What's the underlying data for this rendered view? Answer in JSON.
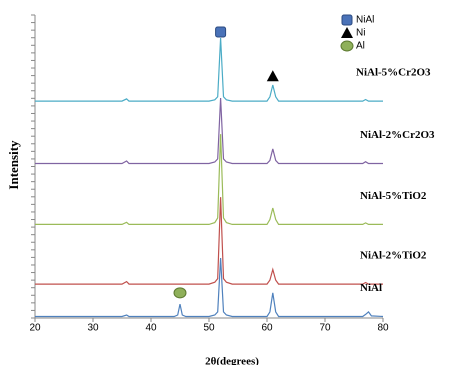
{
  "chart_data": {
    "type": "line",
    "x_label": "2θ(degrees)",
    "y_label": "Intensity",
    "xlim": [
      20,
      80
    ],
    "xticks": [
      20,
      30,
      40,
      50,
      60,
      70,
      80
    ],
    "ylim": [
      0,
      100
    ],
    "x": [
      20,
      35,
      35.8,
      36.2,
      37,
      44,
      44.6,
      45,
      45.4,
      46,
      50,
      51,
      51.5,
      52,
      52.5,
      53,
      54,
      60,
      60.5,
      61,
      61.5,
      62,
      76.5,
      77,
      77.5,
      78,
      80
    ],
    "series": [
      {
        "name": "NiAl-5%Cr2O3",
        "color": "#4bacc6",
        "values": [
          71.6,
          71.6,
          72.3,
          71.6,
          71.6,
          71.6,
          71.6,
          71.6,
          71.6,
          71.6,
          71.6,
          72,
          73,
          92.4,
          73,
          72,
          71.6,
          71.6,
          73,
          76.9,
          73,
          71.6,
          71.6,
          72.1,
          71.6,
          71.6,
          71.6
        ]
      },
      {
        "name": "NiAl-2%Cr2O3",
        "color": "#8064a2",
        "values": [
          51,
          51,
          51.8,
          51,
          51,
          51,
          51,
          51,
          51,
          51,
          51,
          51.5,
          52.5,
          72.6,
          52.5,
          51.5,
          51,
          51,
          52,
          55.8,
          52,
          51,
          51,
          51.6,
          51,
          51,
          51
        ]
      },
      {
        "name": "NiAl-5%TiO2",
        "color": "#9bbb59",
        "values": [
          30.9,
          30.9,
          31.6,
          30.9,
          30.9,
          30.9,
          30.9,
          30.9,
          30.9,
          30.9,
          30.9,
          31.5,
          33,
          60.7,
          33,
          31.5,
          30.9,
          30.9,
          32.5,
          36.3,
          32.5,
          30.9,
          30.9,
          31.4,
          30.9,
          30.9,
          30.9
        ]
      },
      {
        "name": "NiAl-2%TiO2",
        "color": "#c0504d",
        "values": [
          11.2,
          11.2,
          12,
          11.2,
          11.2,
          11.2,
          11.2,
          11.2,
          11.2,
          11.2,
          11.2,
          11.8,
          13,
          39.9,
          13,
          11.8,
          11.2,
          11.2,
          12.5,
          16,
          12.5,
          11.2,
          11.2,
          11.7,
          11.2,
          11.2,
          11.2
        ]
      },
      {
        "name": "NiAl",
        "color": "#4f81bd",
        "values": [
          0.5,
          0.5,
          1,
          0.5,
          0.5,
          0.5,
          1,
          4.6,
          1,
          0.5,
          0.5,
          1,
          2,
          19.8,
          2,
          1,
          0.5,
          0.5,
          2,
          8.3,
          2,
          0.5,
          0.5,
          1.2,
          2,
          0.7,
          0.5
        ]
      }
    ],
    "legend": [
      {
        "name": "NiAl",
        "marker": "square",
        "color": "#4a72b8"
      },
      {
        "name": "Ni",
        "marker": "triangle",
        "color": "#000000"
      },
      {
        "name": "Al",
        "marker": "circle",
        "color": "#8fb05a"
      }
    ],
    "peak_markers": [
      {
        "x": 52,
        "y": 94.4,
        "marker": "square",
        "color": "#4a72b8"
      },
      {
        "x": 61,
        "y": 79.8,
        "marker": "triangle",
        "color": "#000000"
      },
      {
        "x": 45,
        "y": 8.3,
        "marker": "circle",
        "color": "#8fb05a"
      }
    ]
  }
}
